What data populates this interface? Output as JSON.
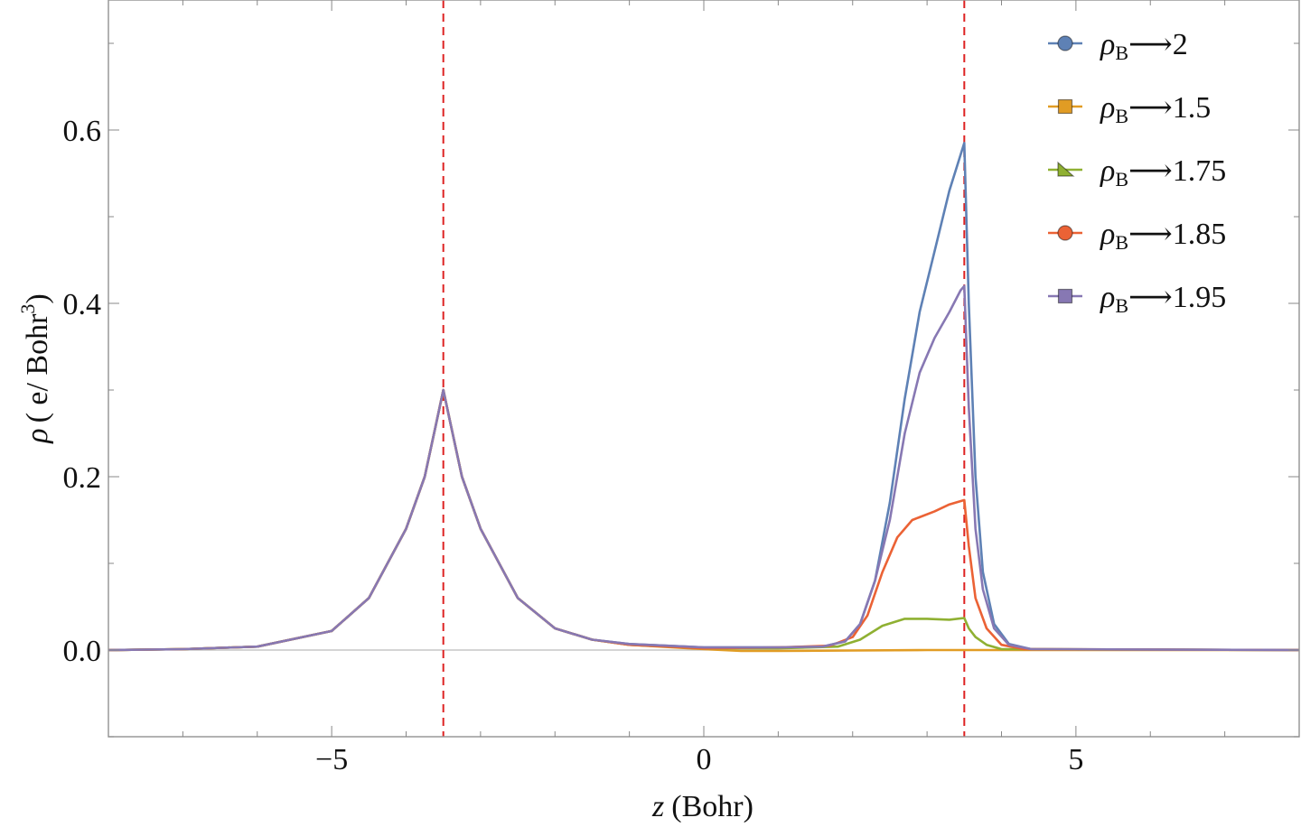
{
  "chart_data": {
    "type": "line",
    "title": "",
    "xlabel": {
      "symbol": "z",
      "unit": "(Bohr)"
    },
    "ylabel": {
      "symbol": "ρ",
      "unit": "( e/ Bohr",
      "unit_sup": "3",
      "unit_close": ")"
    },
    "xlim": [
      -8,
      8
    ],
    "ylim": [
      -0.1,
      0.75
    ],
    "x_ticks": [
      {
        "value": -5,
        "label": "−5"
      },
      {
        "value": 0,
        "label": "0"
      },
      {
        "value": 5,
        "label": "5"
      }
    ],
    "y_ticks": [
      {
        "value": 0.0,
        "label": "0.0"
      },
      {
        "value": 0.2,
        "label": "0.2"
      },
      {
        "value": 0.4,
        "label": "0.4"
      },
      {
        "value": 0.6,
        "label": "0.6"
      }
    ],
    "vertical_lines": [
      {
        "x": -3.5,
        "color": "#dd2222",
        "style": "dashed"
      },
      {
        "x": 3.5,
        "color": "#dd2222",
        "style": "dashed"
      }
    ],
    "legend_position": "top-right",
    "series": [
      {
        "name": "2",
        "label_prefix": "ρ",
        "label_sub": "B",
        "label_arrow": "⟶",
        "color": "#5e81b5",
        "marker": "circle",
        "points": [
          [
            -8,
            0
          ],
          [
            -7,
            0.001
          ],
          [
            -6,
            0.004
          ],
          [
            -5,
            0.022
          ],
          [
            -4.5,
            0.06
          ],
          [
            -4,
            0.14
          ],
          [
            -3.75,
            0.2
          ],
          [
            -3.6,
            0.26
          ],
          [
            -3.5,
            0.3
          ],
          [
            -3.4,
            0.26
          ],
          [
            -3.25,
            0.2
          ],
          [
            -3,
            0.14
          ],
          [
            -2.5,
            0.06
          ],
          [
            -2,
            0.025
          ],
          [
            -1.5,
            0.012
          ],
          [
            -1,
            0.007
          ],
          [
            0,
            0.003
          ],
          [
            1,
            0.003
          ],
          [
            1.6,
            0.004
          ],
          [
            1.9,
            0.01
          ],
          [
            2.1,
            0.03
          ],
          [
            2.3,
            0.08
          ],
          [
            2.5,
            0.17
          ],
          [
            2.7,
            0.29
          ],
          [
            2.9,
            0.39
          ],
          [
            3.1,
            0.46
          ],
          [
            3.3,
            0.53
          ],
          [
            3.5,
            0.585
          ],
          [
            3.56,
            0.4
          ],
          [
            3.65,
            0.2
          ],
          [
            3.75,
            0.09
          ],
          [
            3.9,
            0.03
          ],
          [
            4.1,
            0.007
          ],
          [
            4.4,
            0.001
          ],
          [
            8,
            0
          ]
        ]
      },
      {
        "name": "1.5",
        "label_prefix": "ρ",
        "label_sub": "B",
        "label_arrow": "⟶",
        "color": "#e19c24",
        "marker": "square",
        "points": [
          [
            -8,
            0
          ],
          [
            -7,
            0.001
          ],
          [
            -6,
            0.004
          ],
          [
            -5,
            0.022
          ],
          [
            -4.5,
            0.06
          ],
          [
            -4,
            0.14
          ],
          [
            -3.75,
            0.2
          ],
          [
            -3.6,
            0.26
          ],
          [
            -3.5,
            0.3
          ],
          [
            -3.4,
            0.26
          ],
          [
            -3.25,
            0.2
          ],
          [
            -3,
            0.14
          ],
          [
            -2.5,
            0.06
          ],
          [
            -2,
            0.025
          ],
          [
            -1.5,
            0.012
          ],
          [
            -1,
            0.006
          ],
          [
            0,
            0.001
          ],
          [
            0.5,
            -0.001
          ],
          [
            1,
            -0.001
          ],
          [
            2,
            -0.0005
          ],
          [
            3,
            0
          ],
          [
            8,
            0
          ]
        ]
      },
      {
        "name": "1.75",
        "label_prefix": "ρ",
        "label_sub": "B",
        "label_arrow": "⟶",
        "color": "#8fb032",
        "marker": "triangle",
        "points": [
          [
            -8,
            0
          ],
          [
            -7,
            0.001
          ],
          [
            -6,
            0.004
          ],
          [
            -5,
            0.022
          ],
          [
            -4.5,
            0.06
          ],
          [
            -4,
            0.14
          ],
          [
            -3.75,
            0.2
          ],
          [
            -3.6,
            0.26
          ],
          [
            -3.5,
            0.3
          ],
          [
            -3.4,
            0.26
          ],
          [
            -3.25,
            0.2
          ],
          [
            -3,
            0.14
          ],
          [
            -2.5,
            0.06
          ],
          [
            -2,
            0.025
          ],
          [
            -1.5,
            0.012
          ],
          [
            -1,
            0.006
          ],
          [
            0,
            0.002
          ],
          [
            1,
            0.002
          ],
          [
            1.8,
            0.004
          ],
          [
            2.1,
            0.012
          ],
          [
            2.4,
            0.028
          ],
          [
            2.7,
            0.036
          ],
          [
            3,
            0.036
          ],
          [
            3.3,
            0.035
          ],
          [
            3.5,
            0.037
          ],
          [
            3.56,
            0.025
          ],
          [
            3.65,
            0.015
          ],
          [
            3.8,
            0.006
          ],
          [
            4,
            0.001
          ],
          [
            8,
            0
          ]
        ]
      },
      {
        "name": "1.85",
        "label_prefix": "ρ",
        "label_sub": "B",
        "label_arrow": "⟶",
        "color": "#eb6235",
        "marker": "circle",
        "points": [
          [
            -8,
            0
          ],
          [
            -7,
            0.001
          ],
          [
            -6,
            0.004
          ],
          [
            -5,
            0.022
          ],
          [
            -4.5,
            0.06
          ],
          [
            -4,
            0.14
          ],
          [
            -3.75,
            0.2
          ],
          [
            -3.6,
            0.26
          ],
          [
            -3.5,
            0.3
          ],
          [
            -3.4,
            0.26
          ],
          [
            -3.25,
            0.2
          ],
          [
            -3,
            0.14
          ],
          [
            -2.5,
            0.06
          ],
          [
            -2,
            0.025
          ],
          [
            -1.5,
            0.012
          ],
          [
            -1,
            0.006
          ],
          [
            0,
            0.002
          ],
          [
            1,
            0.003
          ],
          [
            1.7,
            0.005
          ],
          [
            2,
            0.015
          ],
          [
            2.2,
            0.04
          ],
          [
            2.4,
            0.09
          ],
          [
            2.6,
            0.13
          ],
          [
            2.8,
            0.15
          ],
          [
            3.1,
            0.16
          ],
          [
            3.3,
            0.168
          ],
          [
            3.5,
            0.173
          ],
          [
            3.56,
            0.12
          ],
          [
            3.65,
            0.06
          ],
          [
            3.8,
            0.025
          ],
          [
            4,
            0.006
          ],
          [
            4.3,
            0.001
          ],
          [
            8,
            0
          ]
        ]
      },
      {
        "name": "1.95",
        "label_prefix": "ρ",
        "label_sub": "B",
        "label_arrow": "⟶",
        "color": "#8778b3",
        "marker": "square",
        "points": [
          [
            -8,
            0
          ],
          [
            -7,
            0.001
          ],
          [
            -6,
            0.004
          ],
          [
            -5,
            0.022
          ],
          [
            -4.5,
            0.06
          ],
          [
            -4,
            0.14
          ],
          [
            -3.75,
            0.2
          ],
          [
            -3.6,
            0.26
          ],
          [
            -3.5,
            0.3
          ],
          [
            -3.4,
            0.26
          ],
          [
            -3.25,
            0.2
          ],
          [
            -3,
            0.14
          ],
          [
            -2.5,
            0.06
          ],
          [
            -2,
            0.025
          ],
          [
            -1.5,
            0.012
          ],
          [
            -1,
            0.007
          ],
          [
            0,
            0.003
          ],
          [
            1,
            0.003
          ],
          [
            1.6,
            0.004
          ],
          [
            1.9,
            0.01
          ],
          [
            2.1,
            0.03
          ],
          [
            2.3,
            0.08
          ],
          [
            2.5,
            0.15
          ],
          [
            2.7,
            0.25
          ],
          [
            2.9,
            0.32
          ],
          [
            3.1,
            0.36
          ],
          [
            3.3,
            0.39
          ],
          [
            3.45,
            0.415
          ],
          [
            3.5,
            0.42
          ],
          [
            3.56,
            0.28
          ],
          [
            3.65,
            0.14
          ],
          [
            3.75,
            0.07
          ],
          [
            3.9,
            0.025
          ],
          [
            4.1,
            0.006
          ],
          [
            4.4,
            0.001
          ],
          [
            8,
            0
          ]
        ]
      }
    ]
  }
}
